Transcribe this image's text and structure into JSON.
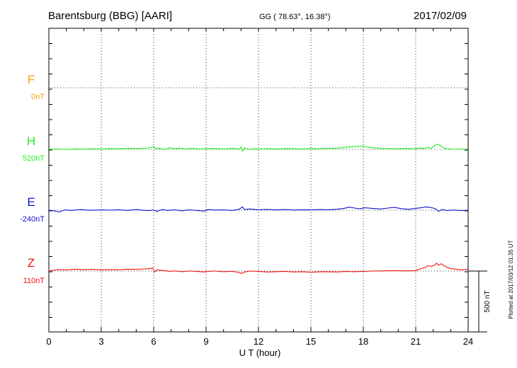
{
  "header": {
    "station": "Barentsburg (BBG)  [AARI]",
    "coords": "GG ( 78.63°,  16.38°)",
    "date": "2017/02/09"
  },
  "plotted_note": "Plotted at 2017/03/12 01:35 UT",
  "scale_label": "500 nT",
  "colors": {
    "F": "#f4a300",
    "H": "#22ee22",
    "E": "#1111cc",
    "Z": "#ee1111"
  },
  "chart_data": {
    "type": "line",
    "title": "Barentsburg (BBG)  [AARI]",
    "xlabel": "U T (hour)",
    "xlim": [
      0,
      24
    ],
    "x_ticks": [
      "0",
      "3",
      "6",
      "9",
      "12",
      "15",
      "18",
      "21",
      "24"
    ],
    "grid": true,
    "scale_bar_nT": 500,
    "series": [
      {
        "name": "F",
        "baseline": "0nT",
        "x": [],
        "values": []
      },
      {
        "name": "H",
        "baseline": "520nT",
        "x": [
          0,
          0.5,
          1,
          1.5,
          2,
          2.5,
          3,
          3.5,
          4,
          4.5,
          5,
          5.5,
          5.85,
          6.0,
          6.1,
          6.3,
          6.6,
          6.9,
          7.2,
          7.5,
          7.8,
          8.2,
          8.6,
          9,
          9.5,
          10,
          10.5,
          10.9,
          11.0,
          11.08,
          11.2,
          11.5,
          11.8,
          12,
          12.5,
          13,
          13.5,
          14,
          14.5,
          15,
          15.5,
          16,
          16.5,
          17,
          17.5,
          17.9,
          18.2,
          18.6,
          19,
          19.5,
          20,
          20.5,
          21,
          21.3,
          21.5,
          21.7,
          21.9,
          22.1,
          22.25,
          22.35,
          22.5,
          22.7,
          23,
          23.5,
          24
        ],
        "values": [
          0,
          10,
          -5,
          15,
          5,
          20,
          10,
          25,
          20,
          30,
          25,
          35,
          60,
          100,
          20,
          40,
          -10,
          50,
          20,
          40,
          10,
          30,
          15,
          20,
          25,
          15,
          30,
          10,
          80,
          -60,
          40,
          -10,
          25,
          10,
          20,
          15,
          25,
          20,
          15,
          25,
          20,
          30,
          40,
          65,
          90,
          110,
          80,
          50,
          30,
          25,
          20,
          30,
          20,
          40,
          25,
          60,
          40,
          130,
          170,
          150,
          80,
          20,
          10,
          5,
          0
        ]
      },
      {
        "name": "E",
        "baseline": "-240nT",
        "x": [
          0,
          0.3,
          0.6,
          0.9,
          1.3,
          1.8,
          2.3,
          3,
          3.5,
          4,
          4.5,
          5,
          5.4,
          5.8,
          5.95,
          6.2,
          6.5,
          6.8,
          7.2,
          7.6,
          8,
          8.5,
          8.9,
          9.1,
          9.5,
          10,
          10.5,
          10.9,
          11.08,
          11.2,
          11.5,
          12,
          12.5,
          13,
          13.5,
          14,
          14.5,
          15,
          15.5,
          16,
          16.5,
          16.9,
          17.2,
          17.5,
          17.8,
          18.1,
          18.5,
          19,
          19.4,
          19.8,
          20.2,
          20.6,
          21,
          21.3,
          21.6,
          21.8,
          22,
          22.15,
          22.3,
          22.5,
          22.8,
          23.2,
          23.6,
          24
        ],
        "values": [
          0,
          -20,
          -60,
          10,
          -10,
          20,
          -5,
          10,
          0,
          15,
          -10,
          20,
          -5,
          -15,
          10,
          -40,
          20,
          -10,
          15,
          -20,
          10,
          -10,
          -30,
          20,
          5,
          10,
          -10,
          30,
          110,
          20,
          40,
          15,
          25,
          10,
          20,
          5,
          15,
          10,
          20,
          15,
          30,
          60,
          100,
          70,
          50,
          80,
          60,
          40,
          70,
          90,
          50,
          30,
          60,
          80,
          110,
          90,
          70,
          40,
          -40,
          20,
          -10,
          5,
          -15,
          -5
        ]
      },
      {
        "name": "Z",
        "baseline": "110nT",
        "x": [
          0,
          0.5,
          1,
          1.5,
          2,
          2.5,
          3,
          3.5,
          4,
          4.5,
          5,
          5.5,
          5.8,
          5.95,
          6.05,
          6.2,
          6.5,
          6.9,
          7.2,
          7.6,
          8,
          8.5,
          8.9,
          9.1,
          9.5,
          10,
          10.5,
          10.9,
          11.05,
          11.2,
          11.5,
          12,
          12.5,
          13,
          13.5,
          14,
          14.5,
          15,
          15.5,
          16,
          16.5,
          17,
          17.5,
          18,
          18.5,
          19,
          19.5,
          20,
          20.5,
          21,
          21.2,
          21.5,
          21.7,
          21.9,
          22.1,
          22.2,
          22.3,
          22.45,
          22.6,
          22.8,
          23,
          23.3,
          23.6,
          24
        ],
        "values": [
          0,
          50,
          40,
          60,
          45,
          55,
          40,
          50,
          45,
          60,
          55,
          70,
          80,
          110,
          -30,
          40,
          20,
          -10,
          5,
          -20,
          0,
          -15,
          -30,
          -10,
          0,
          -20,
          -10,
          -50,
          -80,
          -30,
          0,
          -10,
          -30,
          -20,
          -10,
          -30,
          -20,
          -40,
          -25,
          -20,
          -30,
          -15,
          -20,
          -10,
          0,
          5,
          10,
          15,
          5,
          15,
          60,
          110,
          180,
          150,
          200,
          260,
          190,
          240,
          180,
          120,
          80,
          60,
          40,
          60
        ]
      }
    ]
  }
}
